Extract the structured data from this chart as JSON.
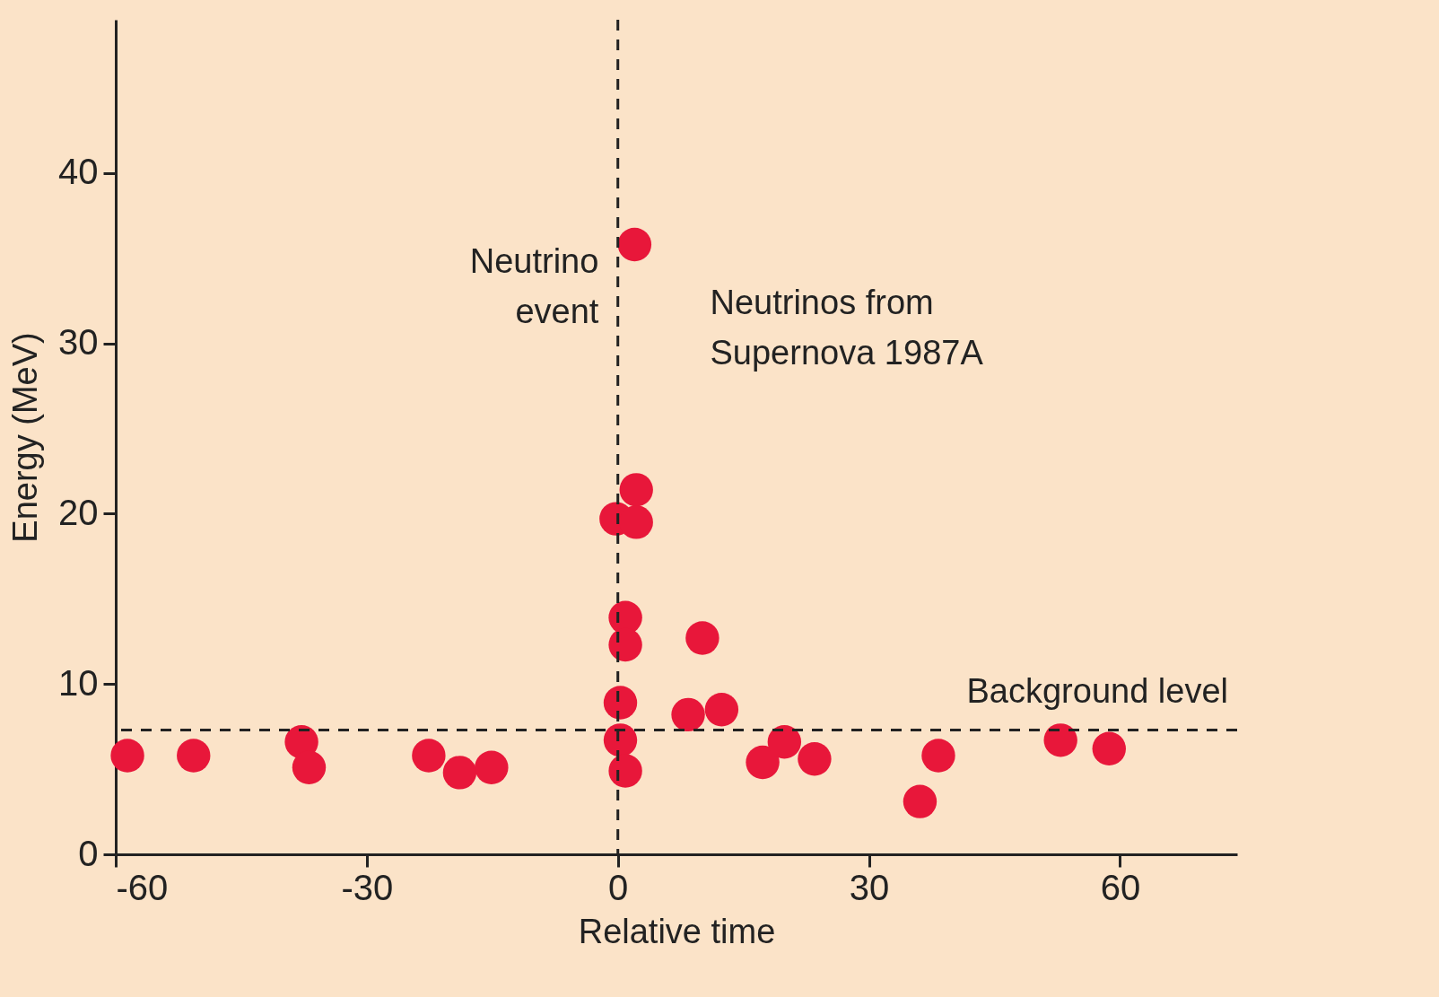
{
  "chart_data": {
    "type": "scatter",
    "xlabel": "Relative time",
    "ylabel": "Energy (MeV)",
    "x": [
      -58.6,
      -50.7,
      -37.8,
      -36.9,
      -22.6,
      -18.9,
      -15.1,
      2.0,
      2.2,
      -0.2,
      2.2,
      0.9,
      0.9,
      0.3,
      0.3,
      0.9,
      10.1,
      8.4,
      12.4,
      17.3,
      19.9,
      23.5,
      36.1,
      38.3,
      52.9,
      58.7
    ],
    "series": [
      {
        "color": "#e8173a",
        "values": [
          5.8,
          5.8,
          6.6,
          5.1,
          5.8,
          4.8,
          5.1,
          35.8,
          21.4,
          19.7,
          19.5,
          13.9,
          12.3,
          8.9,
          6.7,
          4.9,
          12.7,
          8.2,
          8.5,
          5.4,
          6.6,
          5.6,
          3.1,
          5.8,
          6.7,
          6.2
        ]
      }
    ],
    "xlim": [
      -60,
      74
    ],
    "ylim": [
      0,
      49
    ],
    "xticks": [
      -60,
      -30,
      0,
      30,
      60
    ],
    "yticks": [
      0,
      10,
      20,
      30,
      40
    ],
    "grid": false,
    "marker": "circle",
    "ref_lines": [
      {
        "axis": "y",
        "value": 7.3,
        "label": "Background level",
        "line_style": "dashed",
        "color": "#222222"
      },
      {
        "axis": "x",
        "value": 0,
        "label": null,
        "line_style": "dashed",
        "color": "#222222"
      }
    ],
    "annotations": [
      {
        "text": "Neutrino\nevent",
        "x": 2.0,
        "y": 35.8
      },
      "Neutrinos from\nSupernova 1987A"
    ]
  }
}
